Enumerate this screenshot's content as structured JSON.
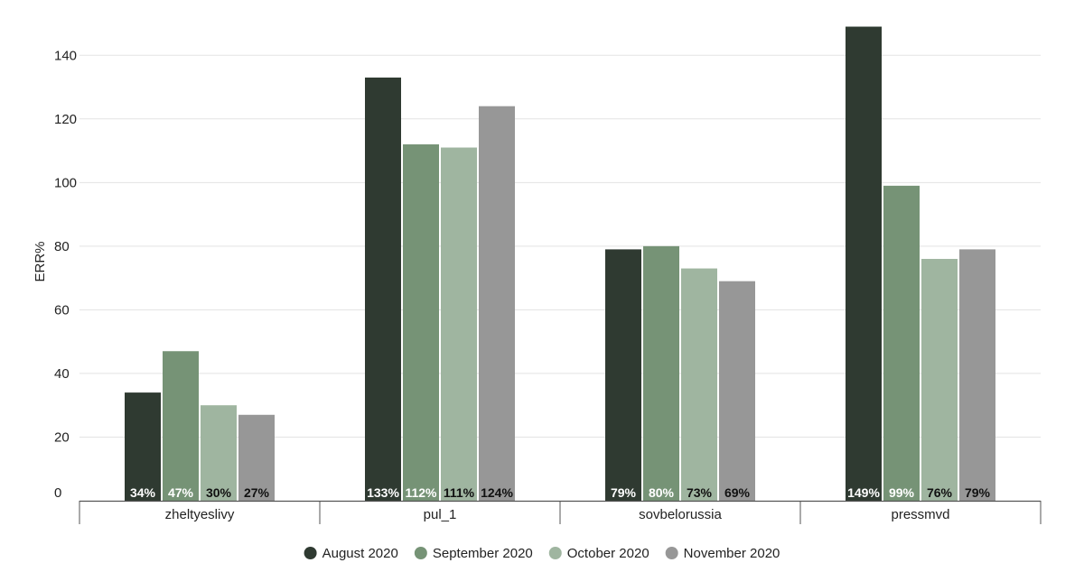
{
  "chart_data": {
    "type": "bar",
    "ylabel": "ERR%",
    "xlabel": "",
    "ylim": [
      0,
      150
    ],
    "yticks": [
      0,
      20,
      40,
      60,
      80,
      100,
      120,
      140
    ],
    "grid": true,
    "legend_position": "bottom-center",
    "categories": [
      "zheltyeslivy",
      "pul_1",
      "sovbelorussia",
      "pressmvd"
    ],
    "series": [
      {
        "name": "August 2020",
        "color": "#2f3a31",
        "values": [
          34,
          133,
          79,
          149
        ],
        "labels": [
          "34%",
          "133%",
          "79%",
          "149%"
        ]
      },
      {
        "name": "September 2020",
        "color": "#769376",
        "values": [
          47,
          112,
          80,
          99
        ],
        "labels": [
          "47%",
          "112%",
          "80%",
          "99%"
        ]
      },
      {
        "name": "October 2020",
        "color": "#9fb5a0",
        "values": [
          30,
          111,
          73,
          76
        ],
        "labels": [
          "30%",
          "111%",
          "73%",
          "76%"
        ]
      },
      {
        "name": "November 2020",
        "color": "#979797",
        "values": [
          27,
          124,
          69,
          79
        ],
        "labels": [
          "27%",
          "124%",
          "69%",
          "79%"
        ]
      }
    ]
  }
}
